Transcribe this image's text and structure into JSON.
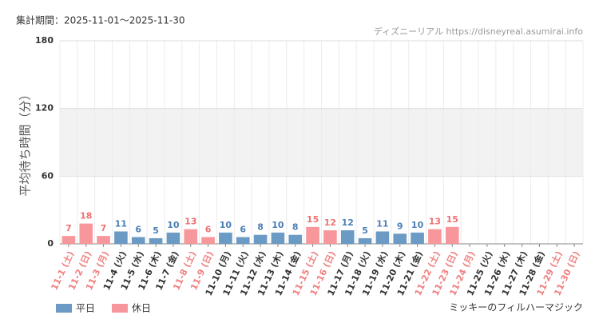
{
  "chart_data": {
    "type": "bar",
    "period": "集計期間：2025-11-01～2025-11-30",
    "source": "ディズニーリアル https://disneyreal.asumirai.info",
    "y_label": "平均待ち時間（分）",
    "attraction": "ミッキーのフィルハーマジック",
    "categories": [
      "11-1 (土)",
      "11-2 (日)",
      "11-3 (月)",
      "11-4 (火)",
      "11-5 (水)",
      "11-6 (木)",
      "11-7 (金)",
      "11-8 (土)",
      "11-9 (日)",
      "11-10 (月)",
      "11-11 (火)",
      "11-12 (水)",
      "11-13 (木)",
      "11-14 (金)",
      "11-15 (土)",
      "11-16 (日)",
      "11-17 (月)",
      "11-18 (火)",
      "11-19 (水)",
      "11-20 (木)",
      "11-21 (金)",
      "11-22 (土)",
      "11-23 (日)",
      "11-24 (月)",
      "11-25 (火)",
      "11-26 (水)",
      "11-27 (木)",
      "11-28 (金)",
      "11-29 (土)",
      "11-30 (日)"
    ],
    "label_colors": [
      "#f08080",
      "#f08080",
      "#f08080",
      "#333333",
      "#333333",
      "#333333",
      "#333333",
      "#f08080",
      "#f08080",
      "#333333",
      "#333333",
      "#333333",
      "#333333",
      "#333333",
      "#f08080",
      "#f08080",
      "#333333",
      "#333333",
      "#333333",
      "#333333",
      "#333333",
      "#f08080",
      "#f08080",
      "#f08080",
      "#333333",
      "#333333",
      "#333333",
      "#333333",
      "#f08080",
      "#f08080"
    ],
    "series": [
      {
        "name": "平日",
        "color": "#6b9ac4",
        "label_color": "#4a7fb5",
        "values": [
          null,
          null,
          null,
          11,
          6,
          5,
          10,
          null,
          null,
          10,
          6,
          8,
          10,
          8,
          null,
          null,
          12,
          5,
          11,
          9,
          10,
          null,
          null,
          null,
          null,
          null,
          null,
          null,
          null,
          null
        ]
      },
      {
        "name": "休日",
        "color": "#f7979b",
        "label_color": "#f07070",
        "values": [
          7,
          18,
          7,
          null,
          null,
          null,
          null,
          13,
          6,
          null,
          null,
          null,
          null,
          null,
          15,
          12,
          null,
          null,
          null,
          null,
          null,
          13,
          15,
          null,
          null,
          null,
          null,
          null,
          null,
          null
        ]
      }
    ],
    "ylim": [
      0,
      180
    ],
    "yticks": [
      0,
      60,
      120,
      180
    ],
    "grid": true
  }
}
